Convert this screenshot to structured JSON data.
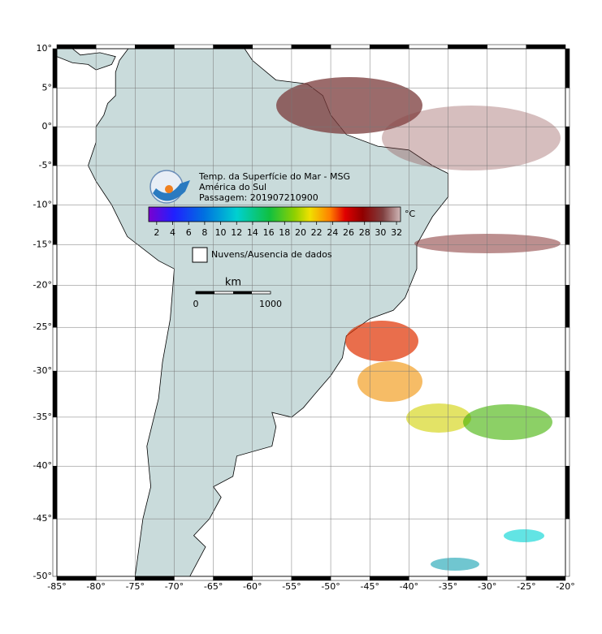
{
  "title": "Temp. da Superfície do Mar - MSG",
  "subtitle": "América do Sul",
  "pass": "Passagem: 201907210900",
  "map": {
    "lonlim": [
      -85,
      -20
    ],
    "latlim": [
      -50,
      10
    ],
    "lon_ticks": [
      {
        "value": -85,
        "label": "-85°"
      },
      {
        "value": -80,
        "label": "-80°"
      },
      {
        "value": -75,
        "label": "-75°"
      },
      {
        "value": -70,
        "label": "-70°"
      },
      {
        "value": -65,
        "label": "-65°"
      },
      {
        "value": -60,
        "label": "-60°"
      },
      {
        "value": -55,
        "label": "-55°"
      },
      {
        "value": -50,
        "label": "-50°"
      },
      {
        "value": -45,
        "label": "-45°"
      },
      {
        "value": -40,
        "label": "-40°"
      },
      {
        "value": -35,
        "label": "-35°"
      },
      {
        "value": -30,
        "label": "-30°"
      },
      {
        "value": -25,
        "label": "-25°"
      },
      {
        "value": -20,
        "label": "-20°"
      }
    ],
    "lat_ticks": [
      {
        "value": 10,
        "label": "10°"
      },
      {
        "value": 5,
        "label": "5°"
      },
      {
        "value": 0,
        "label": "0°"
      },
      {
        "value": -5,
        "label": "-5°"
      },
      {
        "value": -10,
        "label": "-10°"
      },
      {
        "value": -15,
        "label": "-15°"
      },
      {
        "value": -20,
        "label": "-20°"
      },
      {
        "value": -25,
        "label": "-25°"
      },
      {
        "value": -30,
        "label": "-30°"
      },
      {
        "value": -35,
        "label": "-35°"
      },
      {
        "value": -40,
        "label": "-40°"
      },
      {
        "value": -45,
        "label": "-45°"
      },
      {
        "value": -50,
        "label": "-50°"
      }
    ]
  },
  "colorbar": {
    "unit": "°C",
    "lim": [
      1,
      32.5
    ],
    "ticks": [
      2,
      4,
      6,
      8,
      10,
      12,
      14,
      16,
      18,
      20,
      22,
      24,
      26,
      28,
      30,
      32
    ]
  },
  "legend": {
    "no_data": "Nuvens/Ausencia de dados"
  },
  "scale_bar": {
    "unit": "km",
    "labels": [
      "0",
      "1000"
    ]
  }
}
